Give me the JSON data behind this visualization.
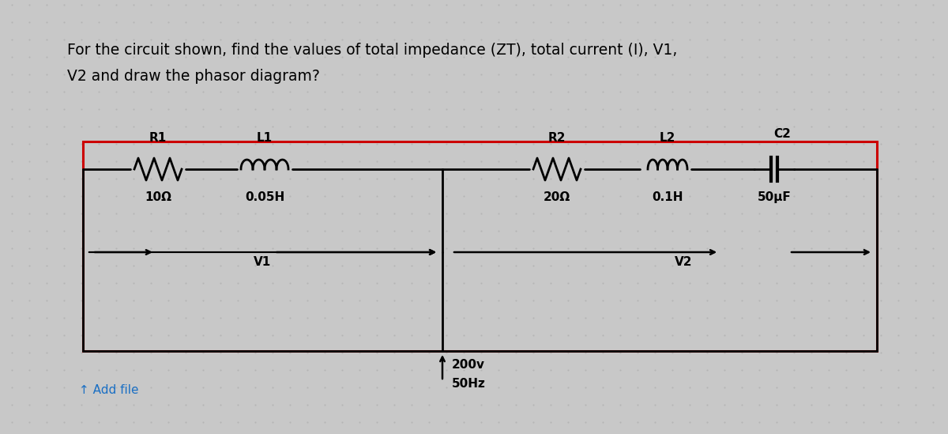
{
  "title_line1": "For the circuit shown, find the values of total impedance (ZT), total current (I), V1,",
  "title_line2": "V2 and draw the phasor diagram?",
  "bg_color": "#c8c8c8",
  "grid_dot_color": "#b0b0b0",
  "circuit_box_color": "#cc0000",
  "circuit_line_color": "#000000",
  "title_fontsize": 13.5,
  "add_file_text": "↑ Add file",
  "add_file_color": "#1a6fc4",
  "component_labels": {
    "R1": "R1",
    "L1": "L1",
    "R2": "R2",
    "L2": "L2",
    "C2": "C2",
    "R1_val": "10Ω",
    "L1_val": "0.05H",
    "R2_val": "20Ω",
    "L2_val": "0.1H",
    "C2_val": "50μF"
  },
  "voltage_label": "200v",
  "freq_label": "50Hz",
  "V1_label": "V1",
  "V2_label": "V2"
}
